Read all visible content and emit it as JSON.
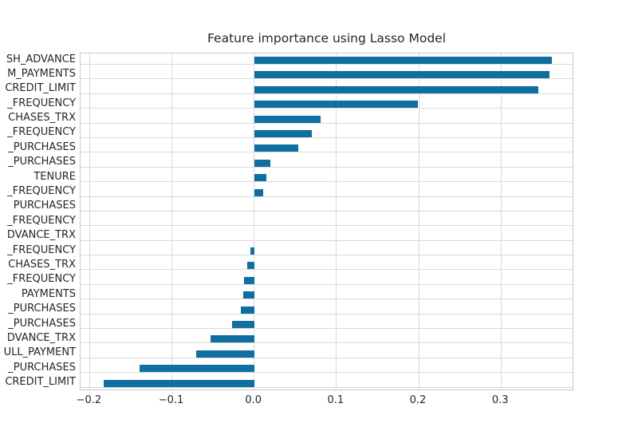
{
  "chart_data": {
    "type": "bar",
    "orientation": "horizontal",
    "title": "Feature importance using Lasso Model",
    "bar_color": "#0e6fa0",
    "grid": true,
    "legend": false,
    "xlabel": "",
    "ylabel": "",
    "xlim": [
      -0.211,
      0.389
    ],
    "x_ticks": [
      -0.2,
      -0.1,
      0.0,
      0.1,
      0.2,
      0.3
    ],
    "x_tick_labels": [
      "−0.2",
      "−0.1",
      "0.0",
      "0.1",
      "0.2",
      "0.3"
    ],
    "categories": [
      "SH_ADVANCE",
      "M_PAYMENTS",
      "CREDIT_LIMIT",
      "_FREQUENCY",
      "CHASES_TRX",
      "_FREQUENCY",
      "_PURCHASES",
      "_PURCHASES",
      "TENURE",
      "_FREQUENCY",
      "PURCHASES",
      "_FREQUENCY",
      "DVANCE_TRX",
      "_FREQUENCY",
      "CHASES_TRX",
      "_FREQUENCY",
      "PAYMENTS",
      "_PURCHASES",
      "_PURCHASES",
      "DVANCE_TRX",
      "ULL_PAYMENT",
      "_PURCHASES",
      "CREDIT_LIMIT"
    ],
    "values": [
      0.362,
      0.359,
      0.345,
      0.199,
      0.081,
      0.07,
      0.054,
      0.02,
      0.015,
      0.011,
      0.0,
      0.0,
      0.0,
      -0.005,
      -0.008,
      -0.012,
      -0.013,
      -0.016,
      -0.027,
      -0.053,
      -0.07,
      -0.139,
      -0.183
    ],
    "note_labels_clipped_at_left_edge": true
  }
}
